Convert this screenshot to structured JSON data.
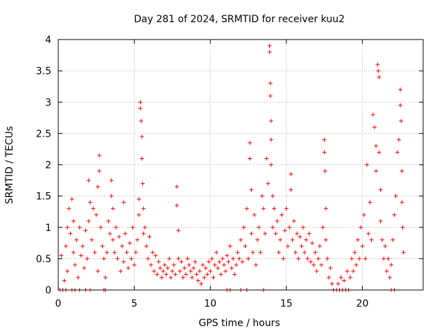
{
  "chart_data": {
    "type": "scatter",
    "title": "Day 281 of 2024, SRMTID for receiver kuu2",
    "xlabel": "GPS time / hours",
    "ylabel": "SRMTID / TECUs",
    "xlim": [
      0,
      24
    ],
    "ylim": [
      0,
      4
    ],
    "xticks": [
      0,
      5,
      10,
      15,
      20
    ],
    "xtick_labels": [
      "0",
      "5",
      "10",
      "15",
      "20"
    ],
    "yticks": [
      0,
      0.5,
      1,
      1.5,
      2,
      2.5,
      3,
      3.5,
      4
    ],
    "ytick_labels": [
      "0",
      "0.5",
      "1",
      "1.5",
      "2",
      "2.5",
      "3",
      "3.5",
      "4"
    ],
    "grid": true,
    "marker": "+",
    "series": [
      {
        "name": "SRMTID",
        "color": "#ff0000",
        "points": [
          [
            0.1,
            0.0
          ],
          [
            0.3,
            0.0
          ],
          [
            0.5,
            0.0
          ],
          [
            0.9,
            0.0
          ],
          [
            1.1,
            0.0
          ],
          [
            1.4,
            0.0
          ],
          [
            1.8,
            0.0
          ],
          [
            2.1,
            0.0
          ],
          [
            3.0,
            0.0
          ],
          [
            3.1,
            0.0
          ],
          [
            0.2,
            0.55
          ],
          [
            0.4,
            0.15
          ],
          [
            0.5,
            0.7
          ],
          [
            0.6,
            1.0
          ],
          [
            0.6,
            0.3
          ],
          [
            0.7,
            1.3
          ],
          [
            0.8,
            0.9
          ],
          [
            0.9,
            1.45
          ],
          [
            1.0,
            1.1
          ],
          [
            1.0,
            0.6
          ],
          [
            1.1,
            0.4
          ],
          [
            1.2,
            0.8
          ],
          [
            1.3,
            0.2
          ],
          [
            1.4,
            1.0
          ],
          [
            1.5,
            0.55
          ],
          [
            1.6,
            0.7
          ],
          [
            1.7,
            0.35
          ],
          [
            1.8,
            0.95
          ],
          [
            1.9,
            0.5
          ],
          [
            2.0,
            1.1
          ],
          [
            2.0,
            1.75
          ],
          [
            2.1,
            1.4
          ],
          [
            2.2,
            0.8
          ],
          [
            2.3,
            1.3
          ],
          [
            2.4,
            0.6
          ],
          [
            2.5,
            1.2
          ],
          [
            2.6,
            1.65
          ],
          [
            2.6,
            0.3
          ],
          [
            2.7,
            1.9
          ],
          [
            2.7,
            2.15
          ],
          [
            2.8,
            1.0
          ],
          [
            2.9,
            0.7
          ],
          [
            3.0,
            0.5
          ],
          [
            3.1,
            0.2
          ],
          [
            3.2,
            0.6
          ],
          [
            3.3,
            1.1
          ],
          [
            3.4,
            0.9
          ],
          [
            3.5,
            1.5
          ],
          [
            3.5,
            1.75
          ],
          [
            3.6,
            1.3
          ],
          [
            3.6,
            0.8
          ],
          [
            3.7,
            0.6
          ],
          [
            3.8,
            1.0
          ],
          [
            3.9,
            0.5
          ],
          [
            4.0,
            0.85
          ],
          [
            4.1,
            0.3
          ],
          [
            4.2,
            0.7
          ],
          [
            4.3,
            1.4
          ],
          [
            4.3,
            0.45
          ],
          [
            4.4,
            0.9
          ],
          [
            4.5,
            0.6
          ],
          [
            4.6,
            0.35
          ],
          [
            4.7,
            0.75
          ],
          [
            4.8,
            0.5
          ],
          [
            4.9,
            1.0
          ],
          [
            5.0,
            0.4
          ],
          [
            5.1,
            0.6
          ],
          [
            5.2,
            0.8
          ],
          [
            5.3,
            1.2
          ],
          [
            5.3,
            1.45
          ],
          [
            5.4,
            2.9
          ],
          [
            5.4,
            3.0
          ],
          [
            5.45,
            2.7
          ],
          [
            5.5,
            2.45
          ],
          [
            5.5,
            2.1
          ],
          [
            5.55,
            1.7
          ],
          [
            5.6,
            1.3
          ],
          [
            5.6,
            0.9
          ],
          [
            5.7,
            1.0
          ],
          [
            5.8,
            0.7
          ],
          [
            5.9,
            0.5
          ],
          [
            6.0,
            0.85
          ],
          [
            6.1,
            0.4
          ],
          [
            6.2,
            0.6
          ],
          [
            6.3,
            0.3
          ],
          [
            6.4,
            0.55
          ],
          [
            6.5,
            0.25
          ],
          [
            6.6,
            0.45
          ],
          [
            6.7,
            0.35
          ],
          [
            6.8,
            0.2
          ],
          [
            6.9,
            0.3
          ],
          [
            7.0,
            0.4
          ],
          [
            7.1,
            0.25
          ],
          [
            7.2,
            0.35
          ],
          [
            7.3,
            0.5
          ],
          [
            7.4,
            0.2
          ],
          [
            7.5,
            0.3
          ],
          [
            7.6,
            0.4
          ],
          [
            7.7,
            0.25
          ],
          [
            7.8,
            1.65
          ],
          [
            7.8,
            1.35
          ],
          [
            7.9,
            0.95
          ],
          [
            7.9,
            0.5
          ],
          [
            8.0,
            0.3
          ],
          [
            8.1,
            0.45
          ],
          [
            8.2,
            0.2
          ],
          [
            8.3,
            0.35
          ],
          [
            8.4,
            0.25
          ],
          [
            8.5,
            0.5
          ],
          [
            8.6,
            0.4
          ],
          [
            8.7,
            0.3
          ],
          [
            8.8,
            0.2
          ],
          [
            8.9,
            0.35
          ],
          [
            9.0,
            0.45
          ],
          [
            9.1,
            0.25
          ],
          [
            9.2,
            0.15
          ],
          [
            9.3,
            0.3
          ],
          [
            9.4,
            0.1
          ],
          [
            9.5,
            0.4
          ],
          [
            9.6,
            0.2
          ],
          [
            9.7,
            0.35
          ],
          [
            9.8,
            0.25
          ],
          [
            9.9,
            0.45
          ],
          [
            10.0,
            0.3
          ],
          [
            10.1,
            0.5
          ],
          [
            10.2,
            0.2
          ],
          [
            10.3,
            0.4
          ],
          [
            10.4,
            0.6
          ],
          [
            10.5,
            0.35
          ],
          [
            10.6,
            0.45
          ],
          [
            10.7,
            0.25
          ],
          [
            10.8,
            0.5
          ],
          [
            10.9,
            0.4
          ],
          [
            11.0,
            0.3
          ],
          [
            11.1,
            0.55
          ],
          [
            11.2,
            0.45
          ],
          [
            11.3,
            0.7
          ],
          [
            11.4,
            0.35
          ],
          [
            11.5,
            0.5
          ],
          [
            11.6,
            0.25
          ],
          [
            11.7,
            0.4
          ],
          [
            11.8,
            0.6
          ],
          [
            11.9,
            0.5
          ],
          [
            12.0,
            0.8
          ],
          [
            12.1,
            0.45
          ],
          [
            12.2,
            1.0
          ],
          [
            12.3,
            0.7
          ],
          [
            12.4,
            1.3
          ],
          [
            12.5,
            0.5
          ],
          [
            12.6,
            2.1
          ],
          [
            12.6,
            2.35
          ],
          [
            12.7,
            1.6
          ],
          [
            12.7,
            0.9
          ],
          [
            12.8,
            0.6
          ],
          [
            12.9,
            1.2
          ],
          [
            13.0,
            0.4
          ],
          [
            13.1,
            0.8
          ],
          [
            13.2,
            1.0
          ],
          [
            13.3,
            0.6
          ],
          [
            13.4,
            1.5
          ],
          [
            13.5,
            1.3
          ],
          [
            13.6,
            0.9
          ],
          [
            13.7,
            2.1
          ],
          [
            13.8,
            1.7
          ],
          [
            13.9,
            3.9
          ],
          [
            13.9,
            3.8
          ],
          [
            13.95,
            3.3
          ],
          [
            13.95,
            3.1
          ],
          [
            14.0,
            2.7
          ],
          [
            14.0,
            2.4
          ],
          [
            14.0,
            2.0
          ],
          [
            14.1,
            1.5
          ],
          [
            14.1,
            1.0
          ],
          [
            14.2,
            1.3
          ],
          [
            14.3,
            0.9
          ],
          [
            14.4,
            1.1
          ],
          [
            14.5,
            0.6
          ],
          [
            14.6,
            0.8
          ],
          [
            14.7,
            1.2
          ],
          [
            14.8,
            0.5
          ],
          [
            14.9,
            0.95
          ],
          [
            15.0,
            1.3
          ],
          [
            15.1,
            0.7
          ],
          [
            15.2,
            1.0
          ],
          [
            15.3,
            1.85
          ],
          [
            15.3,
            1.6
          ],
          [
            15.4,
            0.8
          ],
          [
            15.5,
            1.1
          ],
          [
            15.6,
            0.6
          ],
          [
            15.7,
            0.9
          ],
          [
            15.8,
            0.5
          ],
          [
            15.9,
            0.85
          ],
          [
            16.0,
            0.7
          ],
          [
            16.1,
            1.0
          ],
          [
            16.2,
            0.6
          ],
          [
            16.3,
            0.8
          ],
          [
            16.4,
            0.5
          ],
          [
            16.5,
            0.9
          ],
          [
            16.6,
            0.45
          ],
          [
            16.7,
            0.75
          ],
          [
            16.8,
            0.4
          ],
          [
            16.9,
            0.6
          ],
          [
            17.0,
            0.3
          ],
          [
            17.1,
            0.5
          ],
          [
            17.2,
            0.7
          ],
          [
            17.3,
            0.4
          ],
          [
            17.4,
            1.0
          ],
          [
            17.5,
            2.4
          ],
          [
            17.5,
            2.2
          ],
          [
            17.55,
            1.9
          ],
          [
            17.6,
            1.3
          ],
          [
            17.6,
            0.8
          ],
          [
            17.7,
            0.5
          ],
          [
            17.8,
            0.2
          ],
          [
            17.9,
            0.35
          ],
          [
            18.0,
            0.1
          ],
          [
            18.1,
            0.0
          ],
          [
            18.3,
            0.0
          ],
          [
            18.5,
            0.0
          ],
          [
            18.7,
            0.0
          ],
          [
            18.9,
            0.0
          ],
          [
            19.1,
            0.0
          ],
          [
            18.4,
            0.1
          ],
          [
            18.6,
            0.2
          ],
          [
            18.8,
            0.15
          ],
          [
            19.0,
            0.3
          ],
          [
            19.2,
            0.2
          ],
          [
            19.3,
            0.5
          ],
          [
            19.4,
            0.3
          ],
          [
            19.5,
            0.6
          ],
          [
            19.6,
            0.4
          ],
          [
            19.7,
            0.8
          ],
          [
            19.8,
            0.5
          ],
          [
            19.9,
            1.0
          ],
          [
            20.0,
            0.7
          ],
          [
            20.1,
            1.2
          ],
          [
            20.2,
            0.5
          ],
          [
            20.3,
            2.0
          ],
          [
            20.4,
            0.9
          ],
          [
            20.5,
            1.4
          ],
          [
            20.6,
            0.8
          ],
          [
            20.7,
            2.8
          ],
          [
            20.8,
            2.6
          ],
          [
            20.9,
            2.3
          ],
          [
            20.9,
            1.9
          ],
          [
            21.0,
            3.6
          ],
          [
            21.05,
            3.5
          ],
          [
            21.1,
            3.4
          ],
          [
            21.1,
            2.2
          ],
          [
            21.2,
            1.6
          ],
          [
            21.2,
            1.1
          ],
          [
            21.3,
            0.8
          ],
          [
            21.4,
            0.5
          ],
          [
            21.5,
            0.7
          ],
          [
            21.6,
            0.3
          ],
          [
            21.7,
            0.5
          ],
          [
            21.8,
            0.2
          ],
          [
            21.9,
            0.4
          ],
          [
            22.0,
            0.8
          ],
          [
            22.1,
            1.2
          ],
          [
            22.2,
            1.5
          ],
          [
            22.3,
            2.2
          ],
          [
            22.4,
            2.4
          ],
          [
            22.5,
            3.2
          ],
          [
            22.5,
            2.95
          ],
          [
            22.55,
            2.7
          ],
          [
            22.6,
            1.9
          ],
          [
            22.6,
            1.4
          ],
          [
            22.65,
            1.0
          ],
          [
            22.7,
            0.6
          ],
          [
            21.9,
            0.0
          ],
          [
            22.1,
            0.0
          ],
          [
            11.1,
            0.0
          ],
          [
            11.3,
            0.0
          ],
          [
            12.0,
            0.0
          ],
          [
            12.4,
            0.0
          ],
          [
            13.5,
            0.0
          ]
        ]
      }
    ]
  }
}
